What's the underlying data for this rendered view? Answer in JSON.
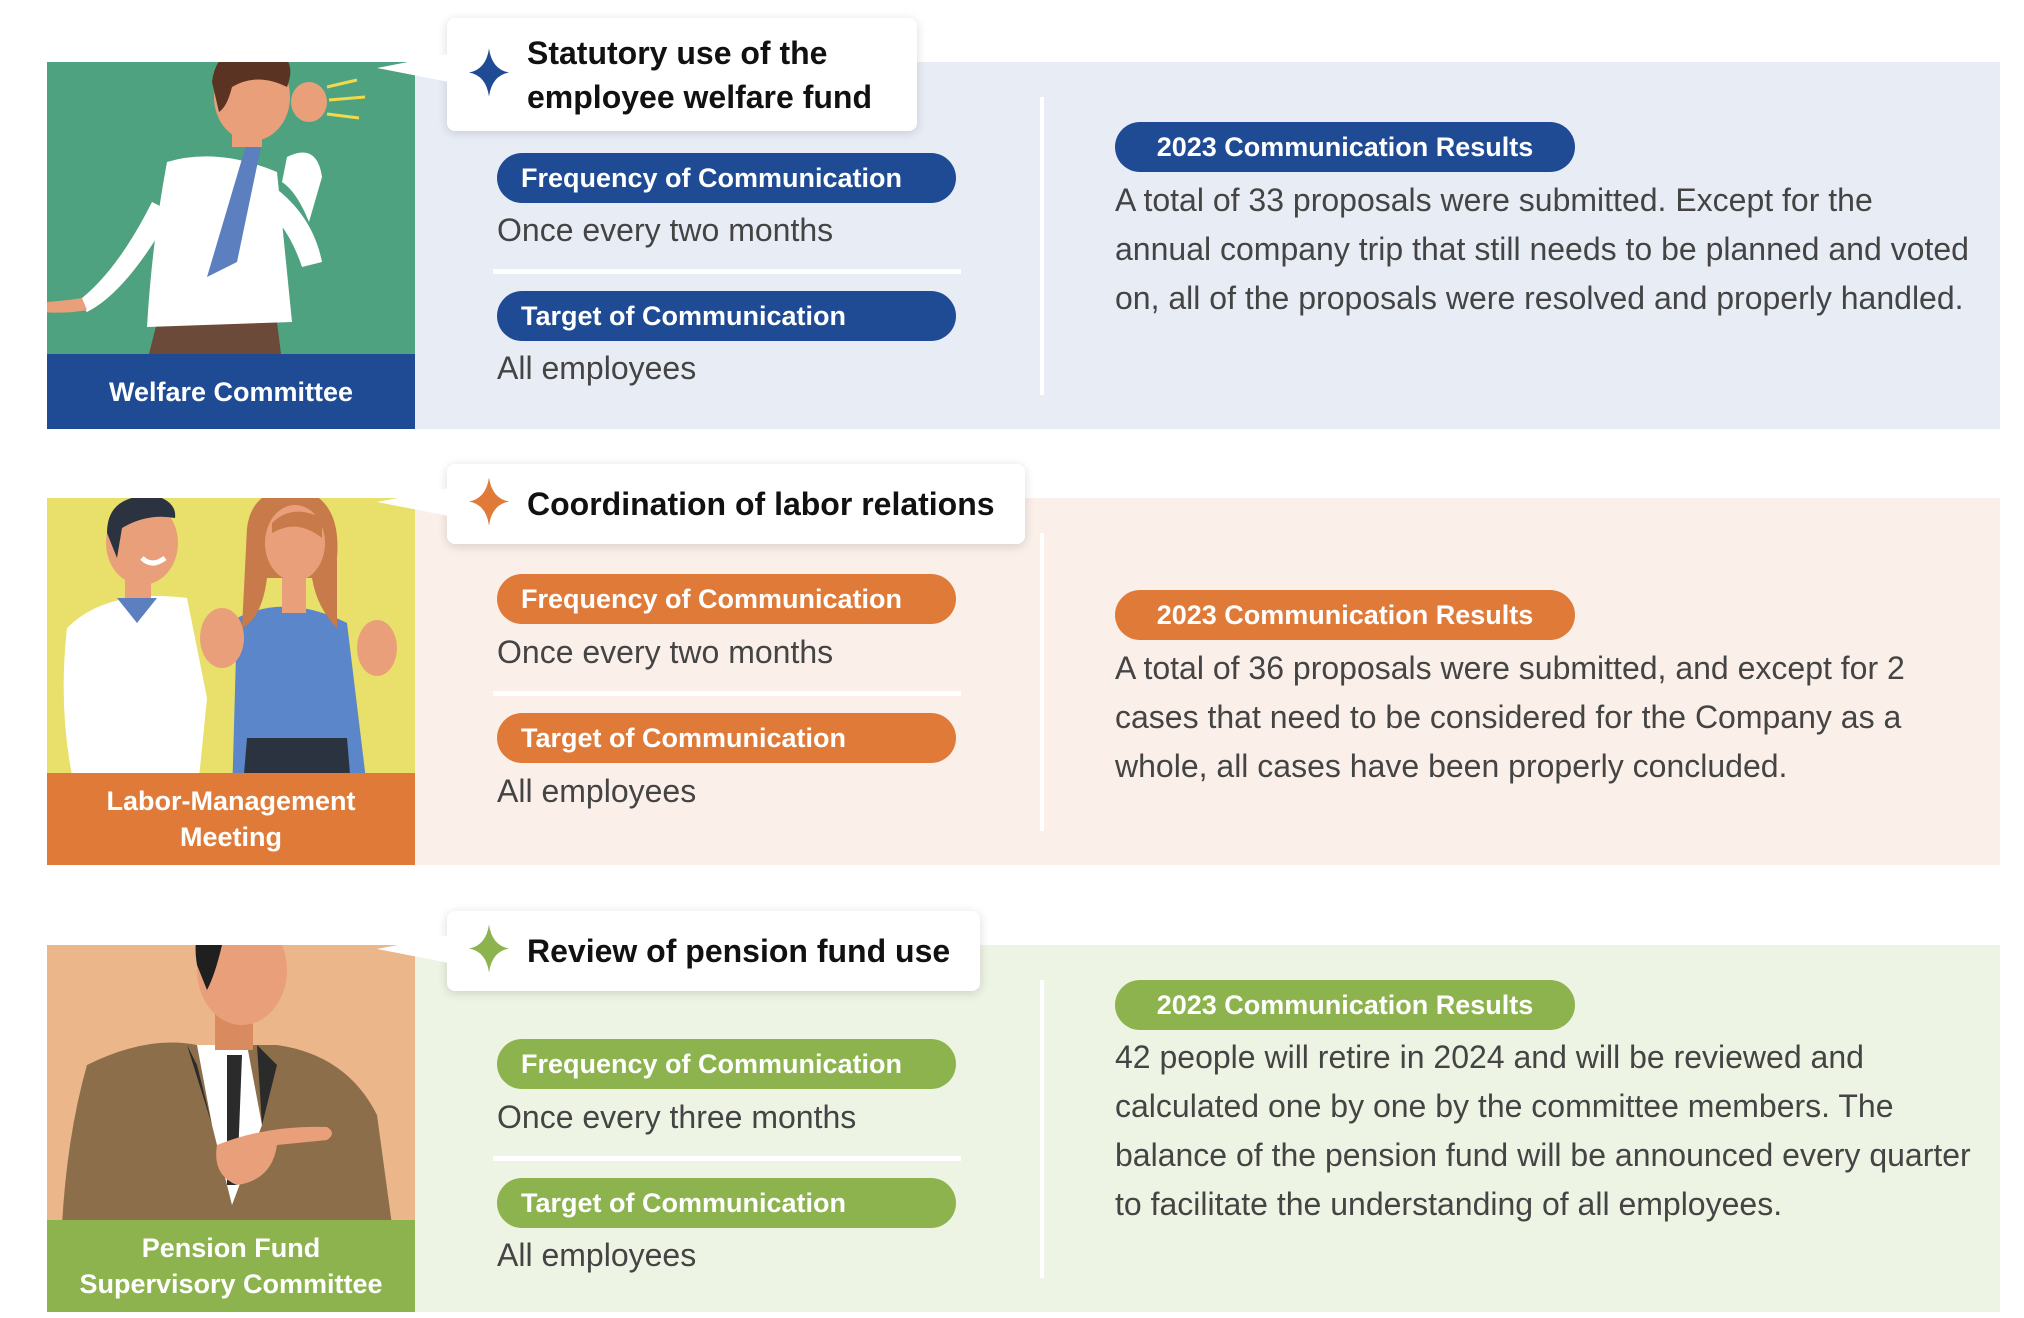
{
  "colors": {
    "blue": "#1e4b94",
    "orange": "#e07a38",
    "green": "#8db34f",
    "blue_bg": "#e8edf5",
    "orange_bg": "#fbefe9",
    "green_bg": "#eef4e4"
  },
  "sections": [
    {
      "committee": "Welfare Committee",
      "bubble": "Statutory use of the employee welfare fund",
      "bubble_icon": "sparkle-icon",
      "frequency_label": "Frequency of Communication",
      "frequency_value": "Once every two months",
      "target_label": "Target of Communication",
      "target_value": "All employees",
      "results_label": "2023 Communication Results",
      "results_text": "A total of 33 proposals were submitted. Except for the annual company trip that still needs to be planned and voted on, all of the proposals were resolved and properly handled."
    },
    {
      "committee": "Labor-Management Meeting",
      "bubble": "Coordination of labor relations",
      "bubble_icon": "sparkle-icon",
      "frequency_label": "Frequency of Communication",
      "frequency_value": "Once every two months",
      "target_label": "Target of Communication",
      "target_value": "All employees",
      "results_label": "2023 Communication Results",
      "results_text": "A total of 36 proposals were submitted, and except for 2 cases that need to be considered for the Company as a whole, all cases have been properly concluded."
    },
    {
      "committee": "Pension Fund Supervisory Committee",
      "bubble": "Review of pension fund use",
      "bubble_icon": "sparkle-icon",
      "frequency_label": "Frequency of Communication",
      "frequency_value": "Once every three months",
      "target_label": "Target of Communication",
      "target_value": "All employees",
      "results_label": "2023 Communication Results",
      "results_text": "42 people will retire in 2024 and will be reviewed and calculated one by one by the committee members. The balance of the pension fund will be announced every quarter to facilitate the understanding of all employees."
    }
  ]
}
